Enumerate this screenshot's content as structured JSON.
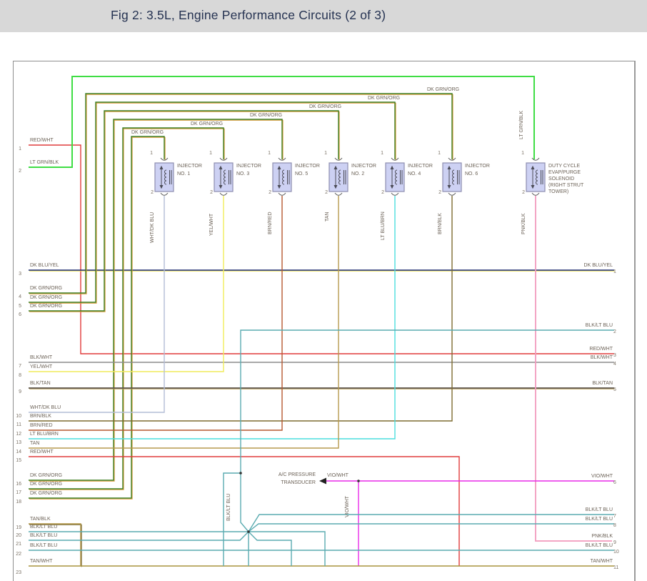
{
  "header": {
    "title": "Fig 2: 3.5L, Engine Performance Circuits (2 of 3)"
  },
  "colors": {
    "lt_grn_blk": "#3fdd44",
    "dk_grn_org": "#3c7d20",
    "org_stripe": "#e09a35",
    "red_wht": "#e13b3b",
    "dk_blu_yel": "#1b2a70",
    "yel_stripe": "#e6da52",
    "blk_wht": "#8c8c8c",
    "yel_wht": "#f1ec5a",
    "blk_tan": "#5c5349",
    "tan_stripe": "#bb9f55",
    "wht_dk_blu": "#b3bdd6",
    "brn_blk": "#7e6b31",
    "brn_red": "#b65831",
    "lt_blu_brn": "#4cdede",
    "tan": "#b69a4e",
    "blk_lt_blu": "#5aabb0",
    "pnk_blk": "#f29abd",
    "vio_wht": "#e92ae9",
    "tan_blk": "#ab8f3e",
    "blk_stripe": "#6b5b22",
    "tan_wht": "#a9943f",
    "component_fill": "#cdd1f3",
    "component_border": "#8d8daf",
    "symbol": "#4a4a55"
  },
  "left_pins": [
    {
      "num": "1",
      "label": "RED/WHT"
    },
    {
      "num": "2",
      "label": "LT GRN/BLK"
    },
    {
      "num": "3",
      "label": "DK BLU/YEL"
    },
    {
      "num": "4",
      "label": "DK GRN/ORG"
    },
    {
      "num": "5",
      "label": "DK GRN/ORG"
    },
    {
      "num": "6",
      "label": "DK GRN/ORG"
    },
    {
      "num": "7",
      "label": "BLK/WHT"
    },
    {
      "num": "8",
      "label": "YEL/WHT"
    },
    {
      "num": "9",
      "label": "BLK/TAN"
    },
    {
      "num": "10",
      "label": "WHT/DK BLU"
    },
    {
      "num": "11",
      "label": "BRN/BLK"
    },
    {
      "num": "12",
      "label": "BRN/RED"
    },
    {
      "num": "13",
      "label": "LT BLU/BRN"
    },
    {
      "num": "14",
      "label": "TAN"
    },
    {
      "num": "15",
      "label": "RED/WHT"
    },
    {
      "num": "16",
      "label": "DK GRN/ORG"
    },
    {
      "num": "17",
      "label": "DK GRN/ORG"
    },
    {
      "num": "18",
      "label": "DK GRN/ORG"
    },
    {
      "num": "19",
      "label": "TAN/BLK"
    },
    {
      "num": "20",
      "label": "BLK/LT BLU"
    },
    {
      "num": "21",
      "label": "BLK/LT BLU"
    },
    {
      "num": "22",
      "label": "BLK/LT BLU"
    },
    {
      "num": "23",
      "label": "TAN/WHT"
    }
  ],
  "right_pins": [
    {
      "num": "1",
      "label": "DK BLU/YEL"
    },
    {
      "num": "2",
      "label": "BLK/LT BLU"
    },
    {
      "num": "3",
      "label": "RED/WHT"
    },
    {
      "num": "4",
      "label": "BLK/WHT"
    },
    {
      "num": "5",
      "label": "BLK/TAN"
    },
    {
      "num": "6",
      "label": "VIO/WHT"
    },
    {
      "num": "7",
      "label": "BLK/LT BLU"
    },
    {
      "num": "8",
      "label": "BLK/LT BLU"
    },
    {
      "num": "9",
      "label": "PNK/BLK"
    },
    {
      "num": "10",
      "label": "BLK/LT BLU"
    },
    {
      "num": "11",
      "label": "TAN/WHT"
    }
  ],
  "top_feeds": {
    "label": "DK GRN/ORG",
    "riser_label": "LT GRN/BLK",
    "labels": [
      "DK GRN/ORG",
      "DK GRN/ORG",
      "DK GRN/ORG",
      "DK GRN/ORG",
      "DK GRN/ORG",
      "DK GRN/ORG"
    ]
  },
  "injectors": [
    {
      "line1": "INJECTOR",
      "line2": "NO. 1",
      "pin_top": "1",
      "pin_bottom": "2",
      "wire_label": "WHT/DK BLU"
    },
    {
      "line1": "INJECTOR",
      "line2": "NO. 3",
      "pin_top": "1",
      "pin_bottom": "2",
      "wire_label": "YEL/WHT"
    },
    {
      "line1": "INJECTOR",
      "line2": "NO. 5",
      "pin_top": "1",
      "pin_bottom": "2",
      "wire_label": "BRN/RED"
    },
    {
      "line1": "INJECTOR",
      "line2": "NO. 2",
      "pin_top": "1",
      "pin_bottom": "2",
      "wire_label": "TAN"
    },
    {
      "line1": "INJECTOR",
      "line2": "NO. 4",
      "pin_top": "1",
      "pin_bottom": "2",
      "wire_label": "LT BLU/BRN"
    },
    {
      "line1": "INJECTOR",
      "line2": "NO. 6",
      "pin_top": "1",
      "pin_bottom": "2",
      "wire_label": "BRN/BLK"
    }
  ],
  "solenoid": {
    "lines": [
      "DUTY CYCLE",
      "EVAP/PURGE",
      "SOLENOID",
      "(RIGHT STRUT",
      "TOWER)"
    ],
    "pin_top": "1",
    "pin_bottom": "2",
    "wire_label": "PNK/BLK"
  },
  "transducer": {
    "line1": "A/C PRESSURE",
    "line2": "TRANSDUCER",
    "wire_label": "VIO/WHT"
  },
  "mid_labels": {
    "blk_lt_blu": "BLK/LT BLU",
    "vio_wht": "VIO/WHT"
  }
}
